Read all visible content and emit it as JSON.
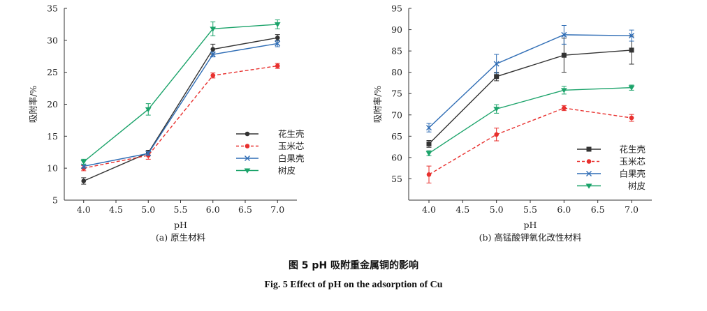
{
  "caption": {
    "cn": "图 5   pH 吸附重金属铜的影响",
    "en": "Fig. 5    Effect of pH on the adsorption of Cu"
  },
  "colors": {
    "花生壳": "#333333",
    "玉米芯": "#e8302e",
    "白果壳": "#2f6db5",
    "树皮": "#1ba36a"
  },
  "chart_data": [
    {
      "type": "line",
      "id": "a",
      "subtitle": "(a) 原生材料",
      "xlabel": "pH",
      "ylabel": "吸附率/%",
      "xlim": [
        3.7,
        7.3
      ],
      "ylim": [
        5,
        35
      ],
      "xticks": [
        4.0,
        4.5,
        5.0,
        5.5,
        6.0,
        6.5,
        7.0
      ],
      "xtick_labels": [
        "4.0",
        "4.5",
        "5.0",
        "5.5",
        "6.0",
        "6.5",
        "7.0"
      ],
      "yticks": [
        5,
        10,
        15,
        20,
        25,
        30,
        35
      ],
      "ytick_labels": [
        "5",
        "10",
        "15",
        "20",
        "25",
        "30",
        "35"
      ],
      "x": [
        4.0,
        5.0,
        6.0,
        7.0
      ],
      "legend_position": "center-right",
      "series": [
        {
          "name": "花生壳",
          "marker": "circle",
          "dashed": false,
          "values": [
            8.0,
            12.4,
            28.6,
            30.4
          ],
          "errors": [
            0.5,
            0.4,
            0.8,
            0.5
          ]
        },
        {
          "name": "玉米芯",
          "marker": "circle",
          "dashed": true,
          "values": [
            10.0,
            12.0,
            24.5,
            26.0
          ],
          "errors": [
            0.4,
            0.6,
            0.4,
            0.4
          ]
        },
        {
          "name": "白果壳",
          "marker": "x",
          "dashed": false,
          "values": [
            10.3,
            12.3,
            27.8,
            29.5
          ],
          "errors": [
            0.3,
            0.3,
            0.4,
            0.5
          ]
        },
        {
          "name": "树皮",
          "marker": "triangle",
          "dashed": false,
          "values": [
            11.0,
            19.2,
            31.8,
            32.5
          ],
          "errors": [
            0.4,
            0.9,
            1.1,
            0.7
          ]
        }
      ]
    },
    {
      "type": "line",
      "id": "b",
      "subtitle": "(b) 高锰酸钾氧化改性材料",
      "xlabel": "pH",
      "ylabel": "吸附率/%",
      "xlim": [
        3.7,
        7.3
      ],
      "ylim": [
        50,
        95
      ],
      "xticks": [
        4.0,
        4.5,
        5.0,
        5.5,
        6.0,
        6.5,
        7.0
      ],
      "xtick_labels": [
        "4.0",
        "4.5",
        "5.0",
        "5.5",
        "6.0",
        "6.5",
        "7.0"
      ],
      "yticks": [
        50,
        55,
        60,
        65,
        70,
        75,
        80,
        85,
        90,
        95
      ],
      "ytick_labels": [
        "",
        "55",
        "60",
        "65",
        "70",
        "75",
        "80",
        "85",
        "90",
        "95"
      ],
      "x": [
        4.0,
        5.0,
        6.0,
        7.0
      ],
      "legend_position": "bottom-right",
      "series": [
        {
          "name": "花生壳",
          "marker": "square",
          "dashed": false,
          "values": [
            63.2,
            79.0,
            84.0,
            85.2
          ],
          "errors": [
            0.8,
            1.0,
            4.0,
            3.3
          ]
        },
        {
          "name": "玉米芯",
          "marker": "circle",
          "dashed": true,
          "values": [
            56.0,
            65.4,
            71.6,
            69.3
          ],
          "errors": [
            2.0,
            1.5,
            0.6,
            0.8
          ]
        },
        {
          "name": "白果壳",
          "marker": "x",
          "dashed": false,
          "values": [
            67.0,
            82.0,
            88.8,
            88.6
          ],
          "errors": [
            1.0,
            2.2,
            2.2,
            1.3
          ]
        },
        {
          "name": "树皮",
          "marker": "triangle",
          "dashed": false,
          "values": [
            61.0,
            71.4,
            75.8,
            76.4
          ],
          "errors": [
            0.6,
            1.0,
            0.9,
            0.6
          ]
        }
      ]
    }
  ]
}
